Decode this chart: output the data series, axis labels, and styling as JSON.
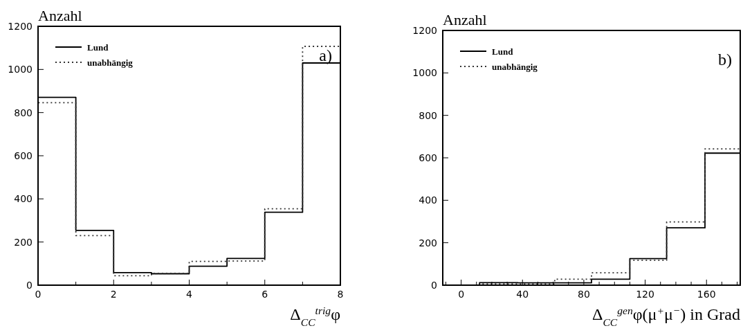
{
  "chart_data": [
    {
      "type": "histogram",
      "ylabel": "Anzahl",
      "xlabel": "Δ$_{CC}$$^{trig}$φ",
      "bins": [
        0,
        1,
        2,
        3,
        4,
        5,
        6,
        7,
        8
      ],
      "series": [
        {
          "name": "Lund",
          "color": "#000000",
          "line_style": "solid",
          "values": [
            871,
            254,
            58,
            53,
            88,
            124,
            338,
            1030
          ]
        },
        {
          "name": "unabhängig",
          "color": "#333333",
          "line_style": "dotted",
          "values": [
            846,
            230,
            44,
            55,
            110,
            112,
            354,
            1107
          ]
        }
      ],
      "xlim": [
        0,
        8
      ],
      "xticks": [
        0,
        {
          "value": 1,
          "label": null
        },
        2,
        {
          "value": 3,
          "label": null
        },
        4,
        {
          "value": 5,
          "label": null
        },
        6,
        {
          "value": 7,
          "label": null
        },
        8
      ],
      "ylim": [
        0,
        1200
      ],
      "yticks": [
        0,
        200,
        400,
        600,
        800,
        1000,
        1200
      ],
      "legend": "top left",
      "annotations": [
        "a)"
      ]
    },
    {
      "type": "histogram",
      "ylabel": "Anzahl",
      "xlabel": "Δ$_{CC}$$^{gen}$φ(μ$^{+}$μ$^{−}$) in Grad",
      "bins": [
        12,
        37,
        61,
        85,
        110,
        134,
        159,
        182
      ],
      "series": [
        {
          "name": "Lund",
          "color": "#000000",
          "line_style": "solid",
          "values": [
            12,
            11,
            11,
            28,
            125,
            270,
            622
          ]
        },
        {
          "name": "unabhängig",
          "color": "#333333",
          "line_style": "dotted",
          "values": [
            6,
            6,
            28,
            58,
            117,
            298,
            642
          ]
        }
      ],
      "xlim": [
        -12,
        182
      ],
      "xticks": [
        {
          "value": -10,
          "label": null
        },
        0,
        {
          "value": 10,
          "label": null
        },
        {
          "value": 20,
          "label": null
        },
        {
          "value": 30,
          "label": null
        },
        40,
        {
          "value": 50,
          "label": null
        },
        {
          "value": 60,
          "label": null
        },
        {
          "value": 70,
          "label": null
        },
        80,
        {
          "value": 90,
          "label": null
        },
        {
          "value": 100,
          "label": null
        },
        {
          "value": 110,
          "label": null
        },
        120,
        {
          "value": 130,
          "label": null
        },
        {
          "value": 140,
          "label": null
        },
        {
          "value": 150,
          "label": null
        },
        160,
        {
          "value": 170,
          "label": null
        },
        {
          "value": 180,
          "label": null
        }
      ],
      "ylim": [
        0,
        1200
      ],
      "yticks": [
        0,
        200,
        400,
        600,
        800,
        1000,
        1200
      ],
      "legend": "top left",
      "annotations": [
        "b)"
      ]
    }
  ]
}
